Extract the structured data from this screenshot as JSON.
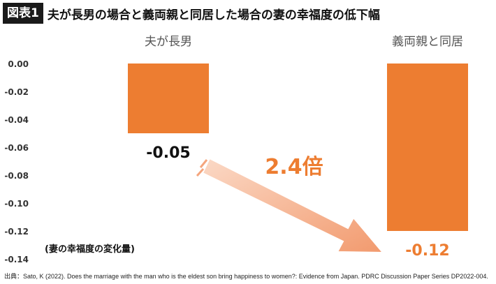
{
  "header": {
    "tag": "図表1",
    "title": "夫が長男の場合と義両親と同居した場合の妻の幸福度の低下幅"
  },
  "chart_data": {
    "type": "bar",
    "title": "夫が長男の場合と義両親と同居した場合の妻の幸福度の低下幅",
    "categories": [
      "夫が長男",
      "義両親と同居"
    ],
    "values": [
      -0.05,
      -0.12
    ],
    "value_labels": [
      "-0.05",
      "-0.12"
    ],
    "ylabel": "(妻の幸福度の変化量)",
    "ylim": [
      -0.14,
      0.0
    ],
    "yticks": [
      0.0,
      -0.02,
      -0.04,
      -0.06,
      -0.08,
      -0.1,
      -0.12,
      -0.14
    ],
    "ytick_labels": [
      "0.00",
      "-0.02",
      "-0.04",
      "-0.06",
      "-0.08",
      "-0.10",
      "-0.12",
      "-0.14"
    ],
    "grid": false,
    "annotation": "2.4倍",
    "colors": {
      "bar": "#ed7d31",
      "arrow": "#f4a57d",
      "annotation": "#ed7d31"
    }
  },
  "footnote": "出典：Sato, K (2022). Does the marriage with the man who is the eldest son bring happiness to women?: Evidence from Japan. PDRC Discussion Paper Series DP2022-004."
}
